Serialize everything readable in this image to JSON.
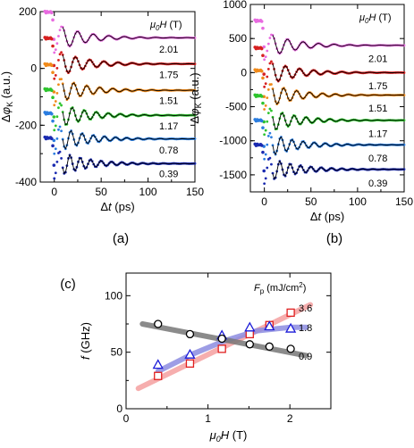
{
  "chart_data": [
    {
      "panel": "(a)",
      "type": "line",
      "ylabel": "Δφ_K (a.u.)",
      "xlabel": "Δt (ps)",
      "legend_title": "μ0H (T)",
      "xlim": [
        -15,
        150
      ],
      "ylim": [
        -400,
        200
      ],
      "xticks": [
        "0",
        "50",
        "100",
        "150"
      ],
      "yticks": [
        "200",
        "0",
        "-200",
        "-400"
      ],
      "series": [
        {
          "name": "2.01",
          "color": "#e86be0",
          "offset": 108,
          "amp": 95,
          "label_y": 68
        },
        {
          "name": "1.75",
          "color": "#d62020",
          "offset": 16,
          "amp": 95,
          "label_y": -22
        },
        {
          "name": "1.51",
          "color": "#f08a1a",
          "offset": -77,
          "amp": 95,
          "label_y": -112
        },
        {
          "name": "1.17",
          "color": "#2ec42e",
          "offset": -165,
          "amp": 95,
          "label_y": -202
        },
        {
          "name": "0.78",
          "color": "#2a7de0",
          "offset": -248,
          "amp": 95,
          "label_y": -287
        },
        {
          "name": "0.39",
          "color": "#1a2ab0",
          "offset": -335,
          "amp": 95,
          "label_y": -370
        }
      ]
    },
    {
      "panel": "(b)",
      "type": "line",
      "ylabel": "Δφ_K (a.u.)",
      "xlabel": "Δt (ps)",
      "legend_title": "μ0H (T)",
      "xlim": [
        -15,
        150
      ],
      "ylim": [
        -1750,
        1000
      ],
      "xticks": [
        "0",
        "50",
        "100",
        "150"
      ],
      "yticks": [
        "1000",
        "500",
        "0",
        "-500",
        "-1000",
        "-1500"
      ],
      "series": [
        {
          "name": "2.01",
          "color": "#e86be0",
          "offset": 400,
          "amp": 380,
          "label_y": 205
        },
        {
          "name": "1.75",
          "color": "#d62020",
          "offset": 0,
          "amp": 380,
          "label_y": -190
        },
        {
          "name": "1.51",
          "color": "#f08a1a",
          "offset": -330,
          "amp": 380,
          "label_y": -520
        },
        {
          "name": "1.17",
          "color": "#2ec42e",
          "offset": -700,
          "amp": 380,
          "label_y": -890
        },
        {
          "name": "0.78",
          "color": "#2a7de0",
          "offset": -1060,
          "amp": 380,
          "label_y": -1255
        },
        {
          "name": "0.39",
          "color": "#1a2ab0",
          "offset": -1420,
          "amp": 380,
          "label_y": -1620
        }
      ]
    },
    {
      "panel": "(c)",
      "type": "scatter",
      "ylabel": "f (GHz)",
      "xlabel": "μ0H (T)",
      "legend_title": "F_p (mJ/cm²)",
      "xlim": [
        0,
        2.5
      ],
      "ylim": [
        0,
        120
      ],
      "xticks": [
        "0",
        "1",
        "2"
      ],
      "yticks": [
        "0",
        "50",
        "100"
      ],
      "series": [
        {
          "name": "3.6",
          "marker": "square",
          "color": "#e02020",
          "line_color": "#f4a0a0",
          "x": [
            0.39,
            0.78,
            1.17,
            1.51,
            1.75,
            2.01
          ],
          "y": [
            29,
            40,
            53,
            66,
            74,
            85
          ],
          "fit": [
            [
              0.15,
              18
            ],
            [
              2.25,
              92
            ]
          ]
        },
        {
          "name": "1.8",
          "marker": "triangle",
          "color": "#1a1ad8",
          "line_color": "#8c8ce0",
          "x": [
            0.39,
            0.78,
            1.17,
            1.51,
            1.75,
            2.01
          ],
          "y": [
            39,
            48,
            65,
            72,
            73,
            71
          ],
          "fit": [
            [
              0.39,
              33
            ],
            [
              0.8,
              48
            ],
            [
              1.2,
              60
            ],
            [
              1.6,
              69
            ],
            [
              2.0,
              72
            ],
            [
              2.2,
              72
            ]
          ]
        },
        {
          "name": "0.9",
          "marker": "circle",
          "color": "#000000",
          "line_color": "#777777",
          "x": [
            0.39,
            0.78,
            1.17,
            1.51,
            1.75,
            2.01
          ],
          "y": [
            75,
            66,
            62,
            57,
            55,
            53
          ],
          "fit": [
            [
              0.2,
              75
            ],
            [
              2.2,
              47
            ]
          ]
        }
      ]
    }
  ]
}
